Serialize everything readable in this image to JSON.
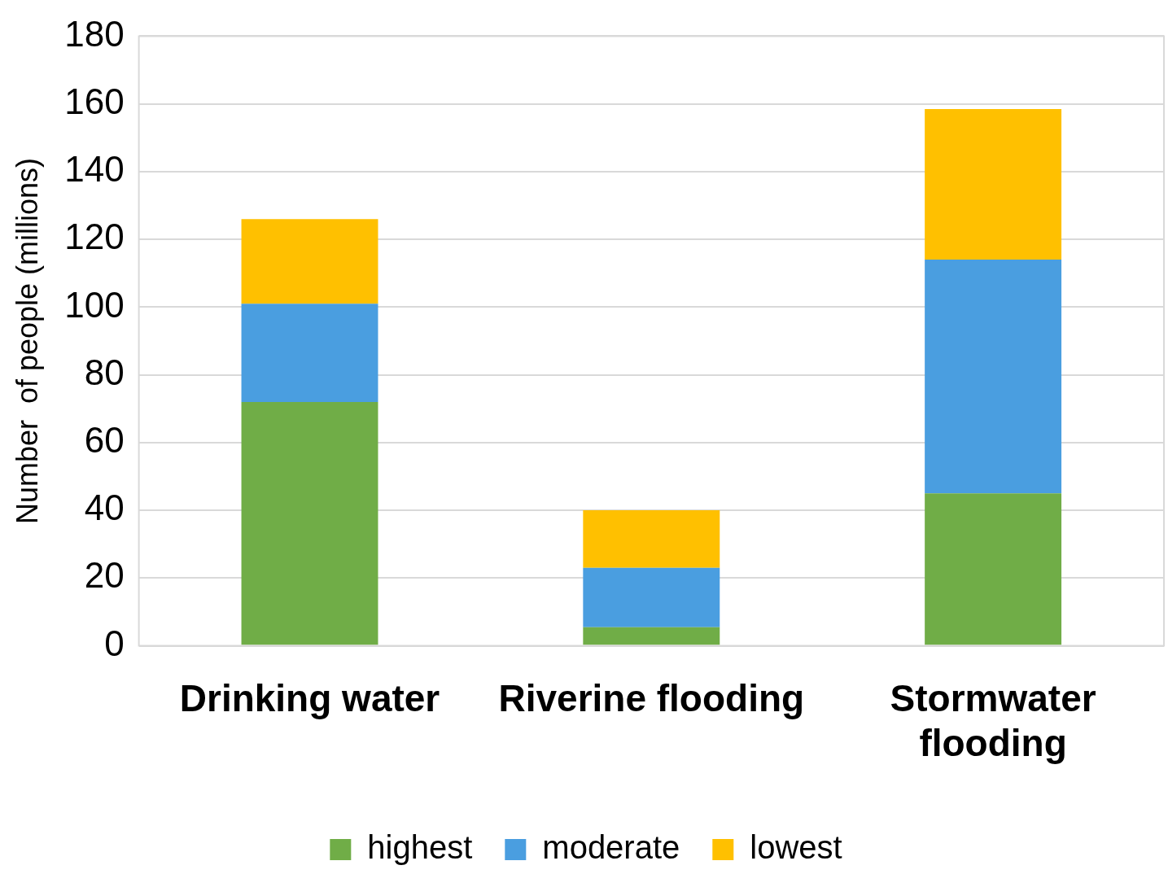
{
  "chart_data": {
    "type": "bar",
    "stacked": true,
    "ylabel": "Number  of people (millions)",
    "categories": [
      "Drinking water",
      "Riverine flooding",
      "Stormwater flooding"
    ],
    "series": [
      {
        "name": "highest",
        "color": "#70ad47",
        "values": [
          72,
          5.5,
          45
        ]
      },
      {
        "name": "moderate",
        "color": "#4a9ee0",
        "values": [
          29,
          17.5,
          69
        ]
      },
      {
        "name": "lowest",
        "color": "#ffc000",
        "values": [
          25,
          17,
          44.5
        ]
      }
    ],
    "ylim": [
      0,
      180
    ],
    "yticks": [
      0,
      20,
      40,
      60,
      80,
      100,
      120,
      140,
      160,
      180
    ],
    "grid": "y",
    "legend": "bottom"
  }
}
